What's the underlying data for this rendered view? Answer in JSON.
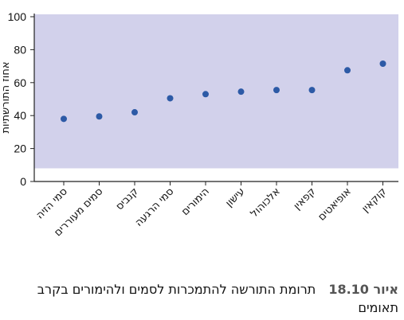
{
  "chart_data": {
    "type": "scatter",
    "categories": [
      "סמי הזיה",
      "סמים מעוררים",
      "קנביס",
      "סמי הרגעה",
      "הימורים",
      "עישון",
      "אלכוהול",
      "קפאין",
      "אופיאטים",
      "קוקאין"
    ],
    "values": [
      38,
      39.5,
      42,
      50.5,
      53,
      54.5,
      55.5,
      55.5,
      67.5,
      71.5
    ],
    "ylabel": "אחוז התורשתיות",
    "ylim": [
      0,
      100
    ],
    "yticks": [
      0,
      20,
      40,
      60,
      80,
      100
    ],
    "plot_band_top": 100,
    "plot_band_bottom": 8,
    "grid": false,
    "colors": {
      "plot_area": "#d2d1eb",
      "marker": "#2d5aa6"
    }
  },
  "caption": {
    "label": "איור 18.10",
    "text": "תרומת התורשה להתמכרות לסמים ולהימורים בקרב תאומים"
  }
}
